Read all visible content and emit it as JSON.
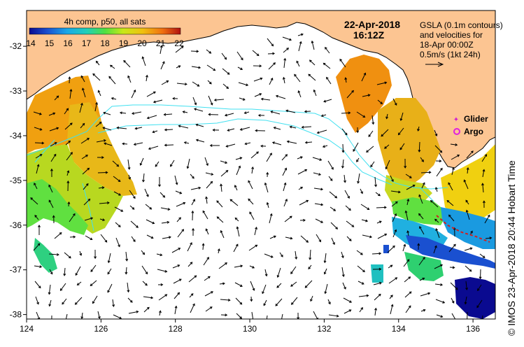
{
  "colorbar": {
    "title": "4h comp, p50, all sats",
    "ticks": [
      "14",
      "15",
      "16",
      "17",
      "18",
      "19",
      "20",
      "21",
      "22"
    ],
    "colors": [
      "#1010a0",
      "#1a5fd0",
      "#19a6e0",
      "#2fd0b0",
      "#60e040",
      "#c0e020",
      "#f0c010",
      "#f07a10",
      "#c01818"
    ]
  },
  "timestamp": {
    "date": "22-Apr-2018",
    "time": "16:12Z"
  },
  "legend_text": [
    "GSLA (0.1m contours)",
    "and velocities for",
    "18-Apr 00:00Z",
    "0.5m/s (1kt 24h)"
  ],
  "markers": {
    "glider_label": "Glider",
    "argo_label": "Argo",
    "glider_color": "#d020d0",
    "argo_color": "#e020e0"
  },
  "axes": {
    "x_ticks": [
      "124",
      "126",
      "128",
      "130",
      "132",
      "134",
      "136"
    ],
    "y_ticks": [
      "-32",
      "-33",
      "-34",
      "-35",
      "-36",
      "-37",
      "-38"
    ],
    "lon_range": [
      124,
      136.6
    ],
    "lat_range": [
      -38.1,
      -31.2
    ]
  },
  "colors": {
    "land": "#fcc592",
    "ocean": "#ffffff",
    "contour": "#40e0f0"
  },
  "credit": "© IMOS 23-Apr-2018 20:44 Hobart Time"
}
